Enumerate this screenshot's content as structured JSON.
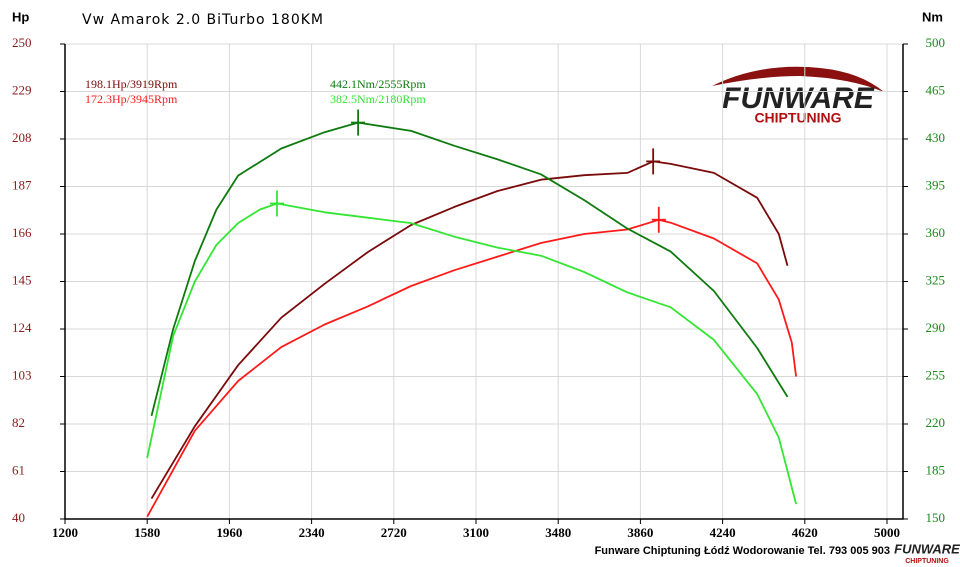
{
  "chart_data": {
    "type": "line",
    "title": "Vw Amarok 2.0 BiTurbo 180KM",
    "ylabel": "Hp",
    "y2label": "Nm",
    "footer": "Funware Chiptuning Łódź Wodorowanie Tel. 793 005 903",
    "logo_text": "FUNWARE",
    "logo_subtext": "CHIPTUNING",
    "grid": true,
    "xlim": [
      1200,
      5000
    ],
    "xticks": [
      1200,
      1580,
      1960,
      2340,
      2720,
      3100,
      3480,
      3860,
      4240,
      4620,
      5000
    ],
    "ylim": [
      40,
      250
    ],
    "yticks": [
      40,
      61,
      82,
      103,
      124,
      145,
      166,
      187,
      208,
      229,
      250
    ],
    "y2lim": [
      150,
      500
    ],
    "y2ticks": [
      150,
      185,
      220,
      255,
      290,
      325,
      360,
      395,
      430,
      465,
      500
    ],
    "series": [
      {
        "name": "198.1Hp/3919Rpm",
        "color": "#7a0a0a",
        "axis": "y",
        "x": [
          1600,
          1800,
          2000,
          2200,
          2400,
          2600,
          2800,
          3000,
          3200,
          3400,
          3600,
          3800,
          3919,
          4000,
          4200,
          4400,
          4500,
          4540
        ],
        "values": [
          49,
          81,
          108,
          129,
          144,
          158,
          170,
          178,
          185,
          190,
          192,
          193,
          198.1,
          197,
          193,
          182,
          166,
          152
        ]
      },
      {
        "name": "172.3Hp/3945Rpm",
        "color": "#ff1a1a",
        "axis": "y",
        "x": [
          1580,
          1800,
          2000,
          2200,
          2400,
          2600,
          2800,
          3000,
          3200,
          3400,
          3600,
          3800,
          3945,
          4000,
          4200,
          4400,
          4500,
          4560,
          4580
        ],
        "values": [
          41,
          79,
          101,
          116,
          126,
          134,
          143,
          150,
          156,
          162,
          166,
          168,
          172.3,
          171,
          164,
          153,
          137,
          118,
          103
        ]
      },
      {
        "name": "442.1Nm/2555Rpm",
        "color": "#0e7a0e",
        "axis": "y2",
        "x": [
          1600,
          1700,
          1800,
          1900,
          2000,
          2200,
          2400,
          2555,
          2800,
          3000,
          3200,
          3400,
          3600,
          3800,
          4000,
          4200,
          4400,
          4540
        ],
        "values": [
          226,
          290,
          340,
          378,
          403,
          423,
          435,
          442.1,
          436,
          425,
          415,
          404,
          385,
          364,
          347,
          318,
          276,
          240
        ]
      },
      {
        "name": "382.5Nm/2180Rpm",
        "color": "#33e633",
        "axis": "y2",
        "x": [
          1580,
          1700,
          1800,
          1900,
          2000,
          2100,
          2180,
          2400,
          2600,
          2800,
          3000,
          3200,
          3400,
          3600,
          3800,
          4000,
          4200,
          4400,
          4500,
          4580
        ],
        "values": [
          195,
          285,
          325,
          352,
          368,
          378,
          382.5,
          376,
          372,
          368,
          358,
          350,
          344,
          332,
          317,
          306,
          282,
          242,
          210,
          161
        ]
      }
    ]
  }
}
